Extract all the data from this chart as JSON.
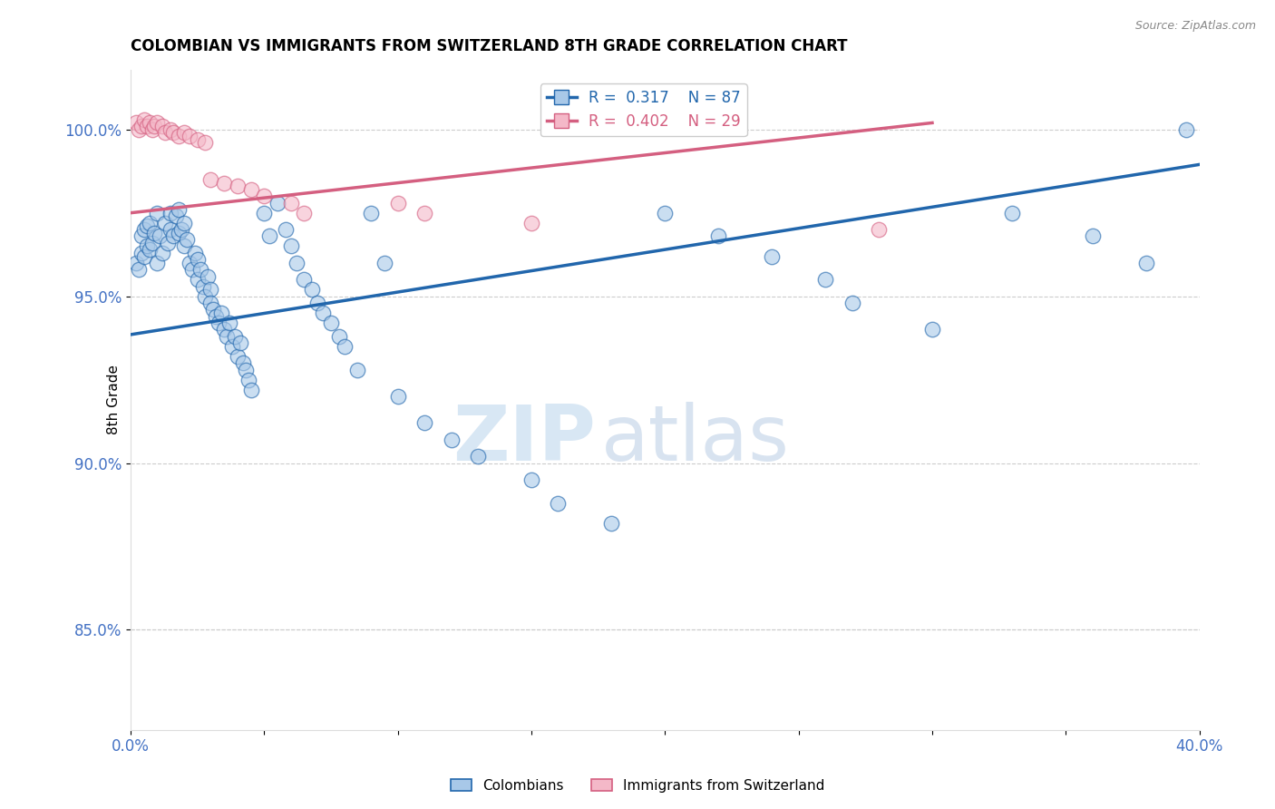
{
  "title": "COLOMBIAN VS IMMIGRANTS FROM SWITZERLAND 8TH GRADE CORRELATION CHART",
  "source": "Source: ZipAtlas.com",
  "ylabel": "8th Grade",
  "yticks": [
    "85.0%",
    "90.0%",
    "95.0%",
    "100.0%"
  ],
  "ytick_vals": [
    0.85,
    0.9,
    0.95,
    1.0
  ],
  "xlim": [
    0.0,
    0.4
  ],
  "ylim": [
    0.82,
    1.018
  ],
  "legend_blue_r": "0.317",
  "legend_blue_n": "87",
  "legend_pink_r": "0.402",
  "legend_pink_n": "29",
  "watermark_zip": "ZIP",
  "watermark_atlas": "atlas",
  "blue_color": "#a8c8e8",
  "pink_color": "#f4b8c8",
  "line_blue": "#2166ac",
  "line_pink": "#d45f80",
  "blue_scatter_x": [
    0.002,
    0.003,
    0.004,
    0.004,
    0.005,
    0.005,
    0.006,
    0.006,
    0.007,
    0.007,
    0.008,
    0.009,
    0.01,
    0.01,
    0.011,
    0.012,
    0.013,
    0.014,
    0.015,
    0.015,
    0.016,
    0.017,
    0.018,
    0.018,
    0.019,
    0.02,
    0.02,
    0.021,
    0.022,
    0.023,
    0.024,
    0.025,
    0.025,
    0.026,
    0.027,
    0.028,
    0.029,
    0.03,
    0.03,
    0.031,
    0.032,
    0.033,
    0.034,
    0.035,
    0.036,
    0.037,
    0.038,
    0.039,
    0.04,
    0.041,
    0.042,
    0.043,
    0.044,
    0.045,
    0.05,
    0.052,
    0.055,
    0.058,
    0.06,
    0.062,
    0.065,
    0.068,
    0.07,
    0.072,
    0.075,
    0.078,
    0.08,
    0.085,
    0.09,
    0.095,
    0.1,
    0.11,
    0.12,
    0.13,
    0.15,
    0.16,
    0.18,
    0.2,
    0.22,
    0.24,
    0.26,
    0.27,
    0.3,
    0.33,
    0.36,
    0.38,
    0.395
  ],
  "blue_scatter_y": [
    0.96,
    0.958,
    0.963,
    0.968,
    0.962,
    0.97,
    0.965,
    0.971,
    0.964,
    0.972,
    0.966,
    0.969,
    0.96,
    0.975,
    0.968,
    0.963,
    0.972,
    0.966,
    0.97,
    0.975,
    0.968,
    0.974,
    0.969,
    0.976,
    0.97,
    0.965,
    0.972,
    0.967,
    0.96,
    0.958,
    0.963,
    0.961,
    0.955,
    0.958,
    0.953,
    0.95,
    0.956,
    0.952,
    0.948,
    0.946,
    0.944,
    0.942,
    0.945,
    0.94,
    0.938,
    0.942,
    0.935,
    0.938,
    0.932,
    0.936,
    0.93,
    0.928,
    0.925,
    0.922,
    0.975,
    0.968,
    0.978,
    0.97,
    0.965,
    0.96,
    0.955,
    0.952,
    0.948,
    0.945,
    0.942,
    0.938,
    0.935,
    0.928,
    0.975,
    0.96,
    0.92,
    0.912,
    0.907,
    0.902,
    0.895,
    0.888,
    0.882,
    0.975,
    0.968,
    0.962,
    0.955,
    0.948,
    0.94,
    0.975,
    0.968,
    0.96,
    1.0
  ],
  "pink_scatter_x": [
    0.002,
    0.003,
    0.004,
    0.005,
    0.006,
    0.007,
    0.008,
    0.009,
    0.01,
    0.012,
    0.013,
    0.015,
    0.016,
    0.018,
    0.02,
    0.022,
    0.025,
    0.028,
    0.03,
    0.035,
    0.04,
    0.045,
    0.05,
    0.06,
    0.065,
    0.1,
    0.11,
    0.15,
    0.28
  ],
  "pink_scatter_y": [
    1.002,
    1.0,
    1.001,
    1.003,
    1.001,
    1.002,
    1.0,
    1.001,
    1.002,
    1.001,
    0.999,
    1.0,
    0.999,
    0.998,
    0.999,
    0.998,
    0.997,
    0.996,
    0.985,
    0.984,
    0.983,
    0.982,
    0.98,
    0.978,
    0.975,
    0.978,
    0.975,
    0.972,
    0.97
  ],
  "blue_line_x": [
    0.0,
    0.4
  ],
  "blue_line_y": [
    0.9385,
    0.9895
  ],
  "pink_line_x": [
    0.0,
    0.3
  ],
  "pink_line_y": [
    0.975,
    1.002
  ]
}
